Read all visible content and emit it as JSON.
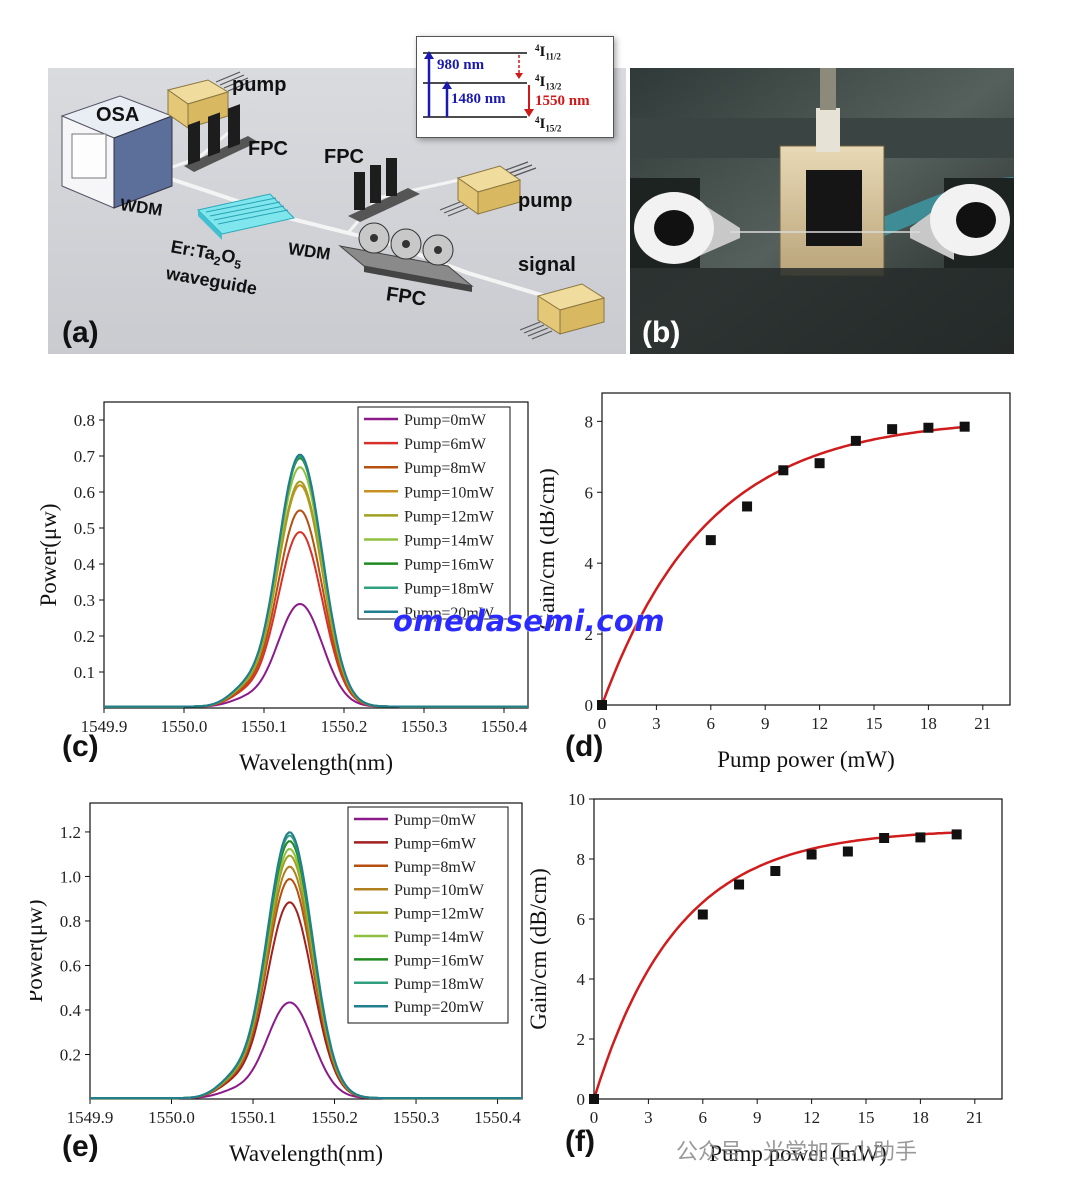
{
  "panels": {
    "a": {
      "label": "(a)",
      "devices": {
        "osa": "OSA",
        "pump_top": "pump",
        "fpc_top_left": "FPC",
        "fpc_top_right": "FPC",
        "pump_right": "pump",
        "wdm_left": "WDM",
        "wdm_right": "WDM",
        "waveguide_line1": "Er:Ta",
        "waveguide_sub1": "2",
        "waveguide_mid": "O",
        "waveguide_sub2": "5",
        "waveguide_line2": "waveguide",
        "signal": "signal",
        "fpc_bottom": "FPC"
      },
      "energy_levels": {
        "level_top": "4I11/2",
        "level_mid": "4I13/2",
        "level_bottom": "4I15/2",
        "transition_980": "980 nm",
        "transition_1480": "1480 nm",
        "transition_1550": "1550 nm"
      },
      "colors": {
        "pump_arrow": "#1a1ab0",
        "emission_arrow": "#d01818"
      }
    },
    "b": {
      "label": "(b)"
    },
    "c": {
      "label": "(c)"
    },
    "d": {
      "label": "(d)"
    },
    "e": {
      "label": "(e)"
    },
    "f": {
      "label": "(f)"
    }
  },
  "watermark": "omedasemi.com",
  "wechat_watermark": "公众号 · 光学加工小助手",
  "chart_data": [
    {
      "id": "c",
      "type": "line",
      "xlabel": "Wavelength(nm)",
      "ylabel": "Power(μw)",
      "xlim": [
        1549.9,
        1550.43
      ],
      "ylim": [
        0,
        0.85
      ],
      "xticks": [
        1549.9,
        1550.0,
        1550.1,
        1550.2,
        1550.3,
        1550.4
      ],
      "xtick_labels": [
        "1549.9",
        "1550.0",
        "1550.1",
        "1550.2",
        "1550.3",
        "1550.4"
      ],
      "yticks": [
        0.1,
        0.2,
        0.3,
        0.4,
        0.5,
        0.6,
        0.7,
        0.8
      ],
      "ytick_labels": [
        "0.1",
        "0.2",
        "0.3",
        "0.4",
        "0.5",
        "0.6",
        "0.7",
        "0.8"
      ],
      "peak_x": 1550.145,
      "legend_position": "top-right",
      "series": [
        {
          "name": "Pump=0mW",
          "peak": 0.285,
          "color": "#8b1a8b"
        },
        {
          "name": "Pump=6mW",
          "peak": 0.485,
          "color": "#d8302a"
        },
        {
          "name": "Pump=8mW",
          "peak": 0.545,
          "color": "#b55010"
        },
        {
          "name": "Pump=10mW",
          "peak": 0.615,
          "color": "#c89020"
        },
        {
          "name": "Pump=12mW",
          "peak": 0.625,
          "color": "#a0a020"
        },
        {
          "name": "Pump=14mW",
          "peak": 0.665,
          "color": "#90c040"
        },
        {
          "name": "Pump=16mW",
          "peak": 0.69,
          "color": "#208a20"
        },
        {
          "name": "Pump=18mW",
          "peak": 0.695,
          "color": "#30a080"
        },
        {
          "name": "Pump=20mW",
          "peak": 0.7,
          "color": "#207e8e"
        }
      ]
    },
    {
      "id": "d",
      "type": "scatter",
      "xlabel": "Pump power (mW)",
      "ylabel": "Gain/cm (dB/cm)",
      "xlim": [
        0,
        22.5
      ],
      "ylim": [
        0,
        8.8
      ],
      "xticks": [
        0,
        3,
        6,
        9,
        12,
        15,
        18,
        21
      ],
      "xtick_labels": [
        "0",
        "3",
        "6",
        "9",
        "12",
        "15",
        "18",
        "21"
      ],
      "yticks": [
        0,
        2,
        4,
        6,
        8
      ],
      "ytick_labels": [
        "0",
        "2",
        "4",
        "6",
        "8"
      ],
      "x": [
        0,
        6,
        8,
        10,
        12,
        14,
        16,
        18,
        20
      ],
      "y": [
        0,
        4.65,
        5.6,
        6.62,
        6.82,
        7.45,
        7.78,
        7.82,
        7.85
      ],
      "fit": {
        "a": 8.1,
        "tau": 5.8,
        "color": "#d01c1c"
      }
    },
    {
      "id": "e",
      "type": "line",
      "xlabel": "Wavelength(nm)",
      "ylabel": "Power(μw)",
      "xlim": [
        1549.9,
        1550.43
      ],
      "ylim": [
        0,
        1.33
      ],
      "xticks": [
        1549.9,
        1550.0,
        1550.1,
        1550.2,
        1550.3,
        1550.4
      ],
      "xtick_labels": [
        "1549.9",
        "1550.0",
        "1550.1",
        "1550.2",
        "1550.3",
        "1550.4"
      ],
      "yticks": [
        0.2,
        0.4,
        0.6,
        0.8,
        1.0,
        1.2
      ],
      "ytick_labels": [
        "0.2",
        "0.4",
        "0.6",
        "0.8",
        "1.0",
        "1.2"
      ],
      "peak_x": 1550.145,
      "legend_position": "top-right",
      "series": [
        {
          "name": "Pump=0mW",
          "peak": 0.43,
          "color": "#8b1a8b"
        },
        {
          "name": "Pump=6mW",
          "peak": 0.88,
          "color": "#a02020"
        },
        {
          "name": "Pump=8mW",
          "peak": 0.985,
          "color": "#b55010"
        },
        {
          "name": "Pump=10mW",
          "peak": 1.04,
          "color": "#b08020"
        },
        {
          "name": "Pump=12mW",
          "peak": 1.09,
          "color": "#a0a020"
        },
        {
          "name": "Pump=14mW",
          "peak": 1.12,
          "color": "#90c040"
        },
        {
          "name": "Pump=16mW",
          "peak": 1.155,
          "color": "#208a20"
        },
        {
          "name": "Pump=18mW",
          "peak": 1.18,
          "color": "#30a080"
        },
        {
          "name": "Pump=20mW",
          "peak": 1.195,
          "color": "#207e8e"
        }
      ]
    },
    {
      "id": "f",
      "type": "scatter",
      "xlabel": "Pump power (mW)",
      "ylabel": "Gain/cm (dB/cm)",
      "xlim": [
        0,
        22.5
      ],
      "ylim": [
        0,
        10
      ],
      "xticks": [
        0,
        3,
        6,
        9,
        12,
        15,
        18,
        21
      ],
      "xtick_labels": [
        "0",
        "3",
        "6",
        "9",
        "12",
        "15",
        "18",
        "21"
      ],
      "yticks": [
        0,
        2,
        4,
        6,
        8,
        10
      ],
      "ytick_labels": [
        "0",
        "2",
        "4",
        "6",
        "8",
        "10"
      ],
      "x": [
        0,
        6,
        8,
        10,
        12,
        14,
        16,
        18,
        20
      ],
      "y": [
        0,
        6.15,
        7.15,
        7.6,
        8.15,
        8.25,
        8.7,
        8.72,
        8.82
      ],
      "fit": {
        "a": 9.0,
        "tau": 4.6,
        "color": "#d01c1c"
      }
    }
  ]
}
